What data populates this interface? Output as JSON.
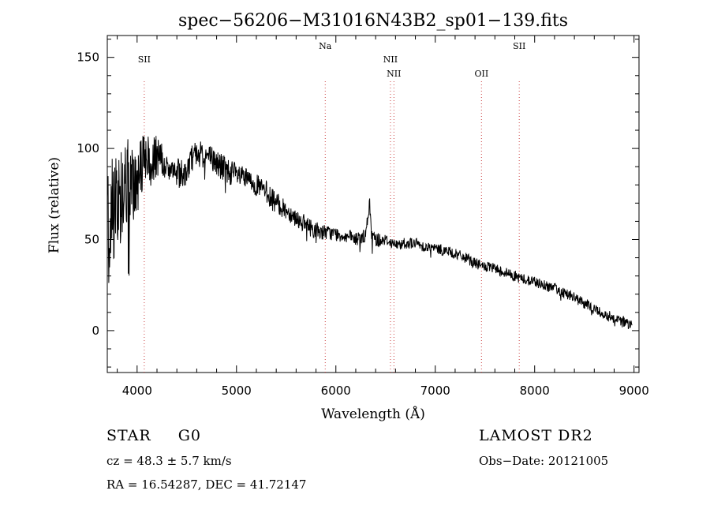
{
  "chart_data": {
    "type": "line",
    "title": "spec−56206−M31016N43B2_sp01−139.fits",
    "xlabel": "Wavelength (Å)",
    "ylabel": "Flux (relative)",
    "xlim": [
      3700,
      9050
    ],
    "ylim": [
      -23,
      162
    ],
    "xticks": [
      4000,
      5000,
      6000,
      7000,
      8000,
      9000
    ],
    "yticks": [
      0,
      50,
      100,
      150
    ],
    "series": [
      {
        "name": "flux",
        "x": [
          3700,
          3750,
          3800,
          3850,
          3900,
          3950,
          4000,
          4050,
          4100,
          4150,
          4200,
          4250,
          4300,
          4350,
          4400,
          4450,
          4500,
          4550,
          4600,
          4650,
          4700,
          4750,
          4800,
          4850,
          4900,
          4950,
          5000,
          5100,
          5200,
          5300,
          5400,
          5500,
          5600,
          5700,
          5800,
          5900,
          6000,
          6100,
          6200,
          6300,
          6340,
          6360,
          6400,
          6500,
          6600,
          6700,
          6800,
          6900,
          7000,
          7100,
          7200,
          7300,
          7400,
          7500,
          7600,
          7700,
          7800,
          7900,
          8000,
          8100,
          8200,
          8300,
          8400,
          8500,
          8600,
          8700,
          8800,
          8900,
          8980
        ],
        "y": [
          55,
          72,
          68,
          75,
          82,
          78,
          84,
          90,
          95,
          92,
          96,
          93,
          90,
          88,
          87,
          86,
          88,
          95,
          98,
          97,
          96,
          94,
          92,
          90,
          88,
          87,
          85,
          83,
          80,
          76,
          70,
          66,
          62,
          58,
          55,
          54,
          53,
          52,
          50,
          52,
          70,
          52,
          50,
          50,
          47,
          48,
          48,
          46,
          45,
          44,
          42,
          40,
          37,
          35,
          34,
          32,
          30,
          28,
          27,
          25,
          23,
          21,
          18,
          15,
          12,
          9,
          7,
          5,
          2
        ],
        "noise": [
          38,
          34,
          30,
          26,
          24,
          22,
          20,
          18,
          16,
          14,
          12,
          10,
          9,
          8,
          8,
          8,
          8,
          8,
          8,
          8,
          8,
          8,
          8,
          8,
          8,
          7,
          7,
          6,
          6,
          6,
          6,
          5,
          5,
          5,
          5,
          4,
          4,
          4,
          4,
          4,
          4,
          4,
          4,
          3,
          3,
          3,
          3,
          3,
          3,
          3,
          3,
          3,
          3,
          3,
          3,
          3,
          3,
          3,
          3,
          3,
          3,
          3,
          3,
          3,
          3,
          3,
          3,
          3,
          3
        ]
      }
    ],
    "lines": [
      {
        "label": "SII",
        "x": 4072,
        "row": 0
      },
      {
        "label": "Na",
        "x": 5893,
        "row": -1
      },
      {
        "label": "NII",
        "x": 6549,
        "row": 0
      },
      {
        "label": "NII",
        "x": 6584,
        "row": 1
      },
      {
        "label": "OII",
        "x": 7465,
        "row": 1
      },
      {
        "label": "SII",
        "x": 7845,
        "row": -1
      }
    ]
  },
  "info": {
    "class": "STAR",
    "subclass": "G0",
    "survey": "LAMOST DR2",
    "cz": "cz = 48.3 ± 5.7 km/s",
    "obs_date": "Obs−Date: 20121005",
    "coords": "RA =  16.54287, DEC =  41.72147"
  }
}
